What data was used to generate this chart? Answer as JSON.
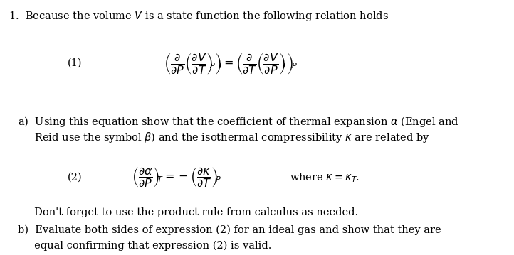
{
  "background_color": "#ffffff",
  "text_color": "#000000",
  "fig_width": 7.22,
  "fig_height": 3.59,
  "dpi": 100,
  "eq1_label": "(1)",
  "eq2_label": "(2)",
  "fs": 10.5,
  "fs_math": 11.5,
  "line1": "1.  Because the volume $V$ is a state function the following relation holds",
  "line_a1": "a)  Using this equation show that the coefficient of thermal expansion $\\alpha$ (Engel and",
  "line_a2": "     Reid use the symbol $\\beta$) and the isothermal compressibility $\\kappa$ are related by",
  "line_where": "where $\\kappa = \\kappa_T$.",
  "line_dont": "     Don't forget to use the product rule from calculus as needed.",
  "line_b1": "b)  Evaluate both sides of expression (2) for an ideal gas and show that they are",
  "line_b2": "     equal confirming that expression (2) is valid."
}
